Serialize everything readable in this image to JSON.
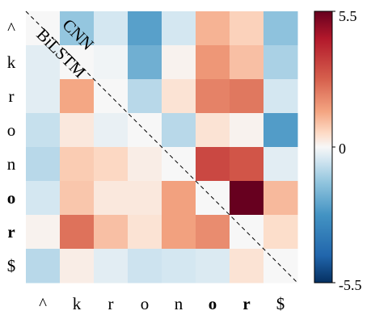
{
  "chart_data": {
    "type": "heatmap",
    "title": "",
    "xlabel": "",
    "ylabel": "",
    "row_labels": [
      "^",
      "k",
      "r",
      "o",
      "n",
      "o",
      "r",
      "$"
    ],
    "col_labels": [
      "^",
      "k",
      "r",
      "o",
      "n",
      "o",
      "r",
      "$"
    ],
    "bold_labels": [
      false,
      false,
      false,
      false,
      false,
      true,
      true,
      false
    ],
    "values": [
      [
        0.0,
        -1.4,
        -0.5,
        -2.4,
        -0.5,
        1.2,
        0.7,
        -1.5
      ],
      [
        -0.3,
        0.0,
        -0.1,
        -2.0,
        0.1,
        1.7,
        1.0,
        -1.1
      ],
      [
        -0.3,
        1.4,
        0.0,
        -0.9,
        0.4,
        2.1,
        2.3,
        -0.5
      ],
      [
        -0.7,
        0.3,
        -0.2,
        0.0,
        -0.9,
        0.4,
        0.1,
        -2.5
      ],
      [
        -0.9,
        0.8,
        0.6,
        0.2,
        0.0,
        3.3,
        3.0,
        -0.3
      ],
      [
        -0.5,
        0.9,
        0.3,
        0.3,
        1.5,
        0.0,
        5.5,
        1.1
      ],
      [
        0.1,
        2.4,
        1.0,
        0.4,
        1.5,
        1.9,
        0.0,
        0.5
      ],
      [
        -0.9,
        0.2,
        -0.3,
        -0.6,
        -0.5,
        -0.4,
        0.4,
        0.0
      ]
    ],
    "diagonal_labels": [
      "CNN",
      "BiLSTM"
    ],
    "colormap": "RdBu_r",
    "vmin": -5.5,
    "vmax": 5.5,
    "colorbar_ticks": [
      "5.5",
      "0",
      "-5.5"
    ],
    "diagonal_line": "dashed"
  }
}
